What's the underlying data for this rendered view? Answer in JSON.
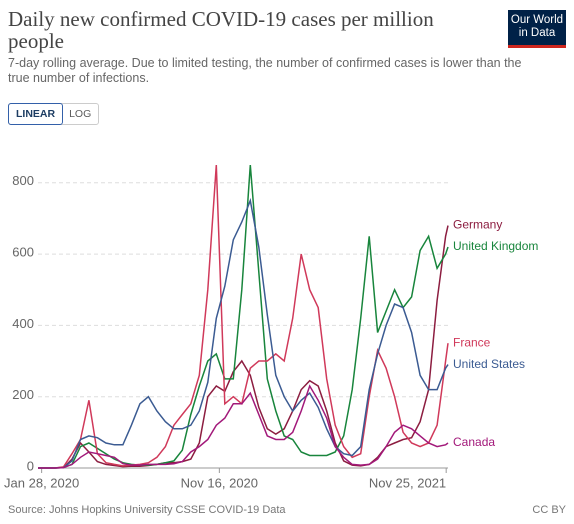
{
  "header": {
    "title": "Daily new confirmed COVID-19 cases per million people",
    "subtitle": "7-day rolling average. Due to limited testing, the number of confirmed cases is lower than the true number of infections.",
    "logo": [
      "Our World",
      "in Data"
    ],
    "scale_buttons": [
      "LINEAR",
      "LOG"
    ]
  },
  "chart_data": {
    "type": "line",
    "x": [
      "2020-01-22",
      "2020-02-05",
      "2020-02-19",
      "2020-03-04",
      "2020-03-18",
      "2020-04-01",
      "2020-04-15",
      "2020-04-29",
      "2020-05-13",
      "2020-05-27",
      "2020-06-10",
      "2020-06-24",
      "2020-07-08",
      "2020-07-22",
      "2020-08-05",
      "2020-08-19",
      "2020-09-02",
      "2020-09-16",
      "2020-09-30",
      "2020-10-14",
      "2020-10-28",
      "2020-11-11",
      "2020-11-25",
      "2020-12-09",
      "2020-12-23",
      "2021-01-06",
      "2021-01-20",
      "2021-02-03",
      "2021-02-17",
      "2021-03-03",
      "2021-03-17",
      "2021-03-31",
      "2021-04-14",
      "2021-04-28",
      "2021-05-12",
      "2021-05-26",
      "2021-06-09",
      "2021-06-23",
      "2021-07-07",
      "2021-07-21",
      "2021-08-04",
      "2021-08-18",
      "2021-09-01",
      "2021-09-15",
      "2021-09-29",
      "2021-10-13",
      "2021-10-27",
      "2021-11-10",
      "2021-11-24",
      "2021-11-28"
    ],
    "series": [
      {
        "name": "Germany",
        "color": "#8c1d40",
        "values": [
          0,
          0,
          0,
          1,
          25,
          70,
          45,
          18,
          10,
          7,
          4,
          5,
          5,
          7,
          10,
          15,
          15,
          18,
          25,
          70,
          200,
          230,
          215,
          270,
          300,
          260,
          170,
          110,
          95,
          110,
          160,
          220,
          245,
          230,
          160,
          70,
          20,
          8,
          6,
          10,
          30,
          60,
          70,
          80,
          85,
          130,
          220,
          470,
          650,
          680
        ]
      },
      {
        "name": "United Kingdom",
        "color": "#18853c",
        "values": [
          0,
          0,
          0,
          2,
          10,
          60,
          70,
          55,
          40,
          25,
          15,
          10,
          8,
          8,
          10,
          15,
          20,
          50,
          150,
          230,
          300,
          320,
          250,
          250,
          500,
          850,
          550,
          250,
          160,
          90,
          80,
          45,
          35,
          35,
          35,
          45,
          90,
          220,
          420,
          650,
          380,
          440,
          500,
          450,
          480,
          610,
          650,
          560,
          600,
          620
        ]
      },
      {
        "name": "France",
        "color": "#d0395a",
        "values": [
          0,
          0,
          0,
          3,
          40,
          80,
          190,
          40,
          15,
          10,
          6,
          8,
          10,
          15,
          30,
          60,
          120,
          150,
          180,
          260,
          500,
          850,
          180,
          200,
          180,
          280,
          300,
          300,
          320,
          300,
          420,
          600,
          500,
          450,
          250,
          120,
          60,
          30,
          40,
          200,
          330,
          280,
          200,
          100,
          70,
          60,
          70,
          120,
          300,
          350
        ]
      },
      {
        "name": "United States",
        "color": "#3b5b92",
        "values": [
          0,
          0,
          0,
          1,
          20,
          80,
          90,
          85,
          70,
          65,
          65,
          120,
          180,
          200,
          160,
          130,
          110,
          110,
          120,
          160,
          240,
          420,
          510,
          640,
          690,
          750,
          620,
          430,
          260,
          200,
          160,
          190,
          210,
          170,
          110,
          60,
          40,
          35,
          60,
          220,
          320,
          400,
          460,
          450,
          380,
          260,
          220,
          220,
          280,
          290
        ]
      },
      {
        "name": "Canada",
        "color": "#a2197a",
        "values": [
          0,
          0,
          0,
          1,
          10,
          30,
          45,
          40,
          35,
          30,
          12,
          8,
          8,
          10,
          10,
          10,
          12,
          18,
          45,
          60,
          80,
          120,
          140,
          180,
          180,
          210,
          150,
          90,
          80,
          80,
          100,
          160,
          230,
          190,
          140,
          60,
          30,
          10,
          8,
          10,
          25,
          60,
          100,
          120,
          110,
          90,
          70,
          60,
          65,
          70
        ]
      }
    ],
    "xlim": [
      "2020-01-22",
      "2021-11-28"
    ],
    "xticks": [
      {
        "value": "2020-01-28",
        "label": "Jan 28, 2020"
      },
      {
        "value": "2020-11-16",
        "label": "Nov 16, 2020"
      },
      {
        "value": "2021-11-25",
        "label": "Nov 25, 2021"
      }
    ],
    "ylim": [
      0,
      920
    ],
    "yticks": [
      0,
      200,
      400,
      600,
      800
    ],
    "grid": true
  },
  "footer": {
    "source": "Source: Johns Hopkins University CSSE COVID-19 Data",
    "license": "CC BY"
  }
}
